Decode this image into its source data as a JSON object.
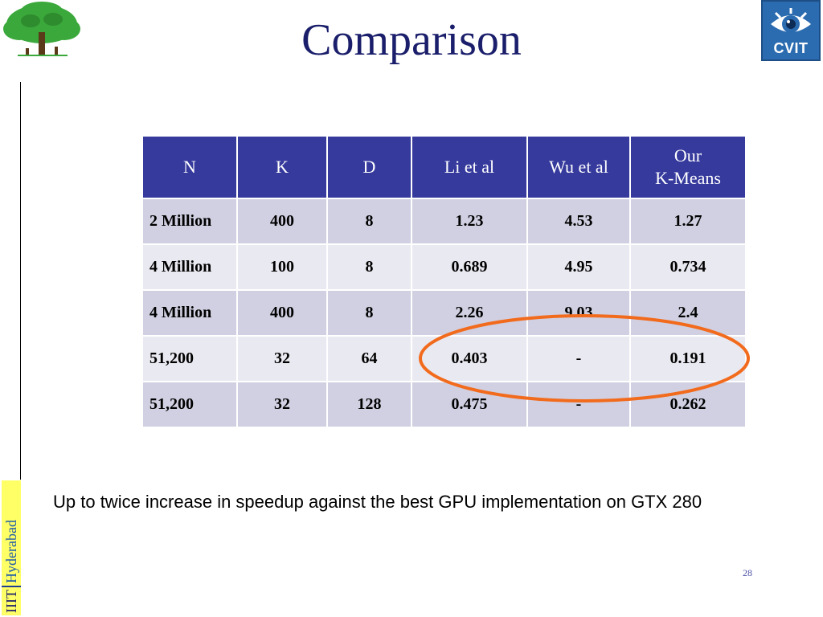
{
  "title": "Comparison",
  "logos": {
    "left_icon": "tree-icon",
    "right_label": "CVIT",
    "right_icon": "eye-icon"
  },
  "badge": {
    "part1": "IIIT",
    "part2": "Hyderabad"
  },
  "table": {
    "headers": [
      "N",
      "K",
      "D",
      "Li et al",
      "Wu et al",
      [
        "Our",
        "K-Means"
      ]
    ],
    "rows": [
      [
        "2 Million",
        "400",
        "8",
        "1.23",
        "4.53",
        "1.27"
      ],
      [
        "4 Million",
        "100",
        "8",
        "0.689",
        "4.95",
        "0.734"
      ],
      [
        "4 Million",
        "400",
        "8",
        "2.26",
        "9.03",
        "2.4"
      ],
      [
        "51,200",
        "32",
        "64",
        "0.403",
        "-",
        "0.191"
      ],
      [
        "51,200",
        "32",
        "128",
        "0.475",
        "-",
        "0.262"
      ]
    ]
  },
  "caption": "Up to twice increase in speedup against the best GPU implementation on GTX 280",
  "page_number": "28",
  "colors": {
    "title": "#1b1f6b",
    "header_bg": "#363a9c",
    "row_dark": "#d0d0e2",
    "row_light": "#e9e9f1",
    "highlight_ellipse": "#f26b1d"
  }
}
